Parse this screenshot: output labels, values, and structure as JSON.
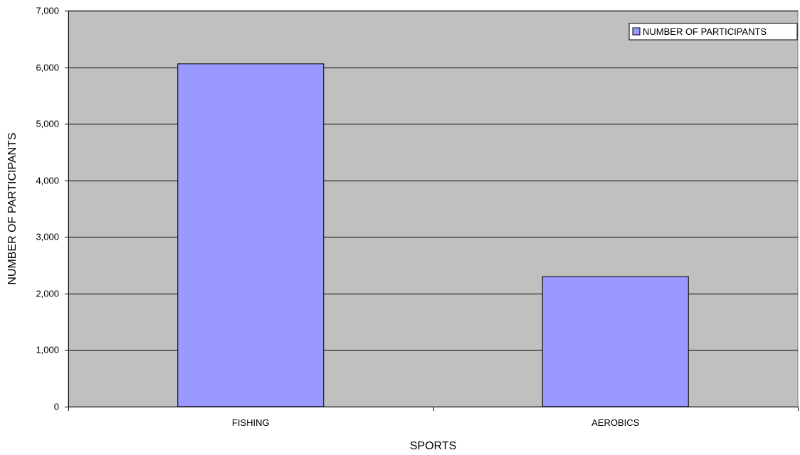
{
  "chart_data": {
    "type": "bar",
    "title": "",
    "xlabel": "SPORTS",
    "ylabel": "NUMBER OF PARTICIPANTS",
    "categories": [
      "FISHING",
      "AEROBICS"
    ],
    "series": [
      {
        "name": "NUMBER OF PARTICIPANTS",
        "values": [
          6060,
          2300
        ]
      }
    ],
    "ylim": [
      0,
      7000
    ],
    "yticks": [
      0,
      1000,
      2000,
      3000,
      4000,
      5000,
      6000,
      7000
    ],
    "ytick_labels": [
      "0",
      "1,000",
      "2,000",
      "3,000",
      "4,000",
      "5,000",
      "6,000",
      "7,000"
    ],
    "grid": true,
    "legend_position": "top-right",
    "colors": {
      "plot_background": "#c0c0c0",
      "bar_fill": "#9999ff",
      "bar_stroke": "#000000",
      "gridline": "#000000"
    }
  }
}
